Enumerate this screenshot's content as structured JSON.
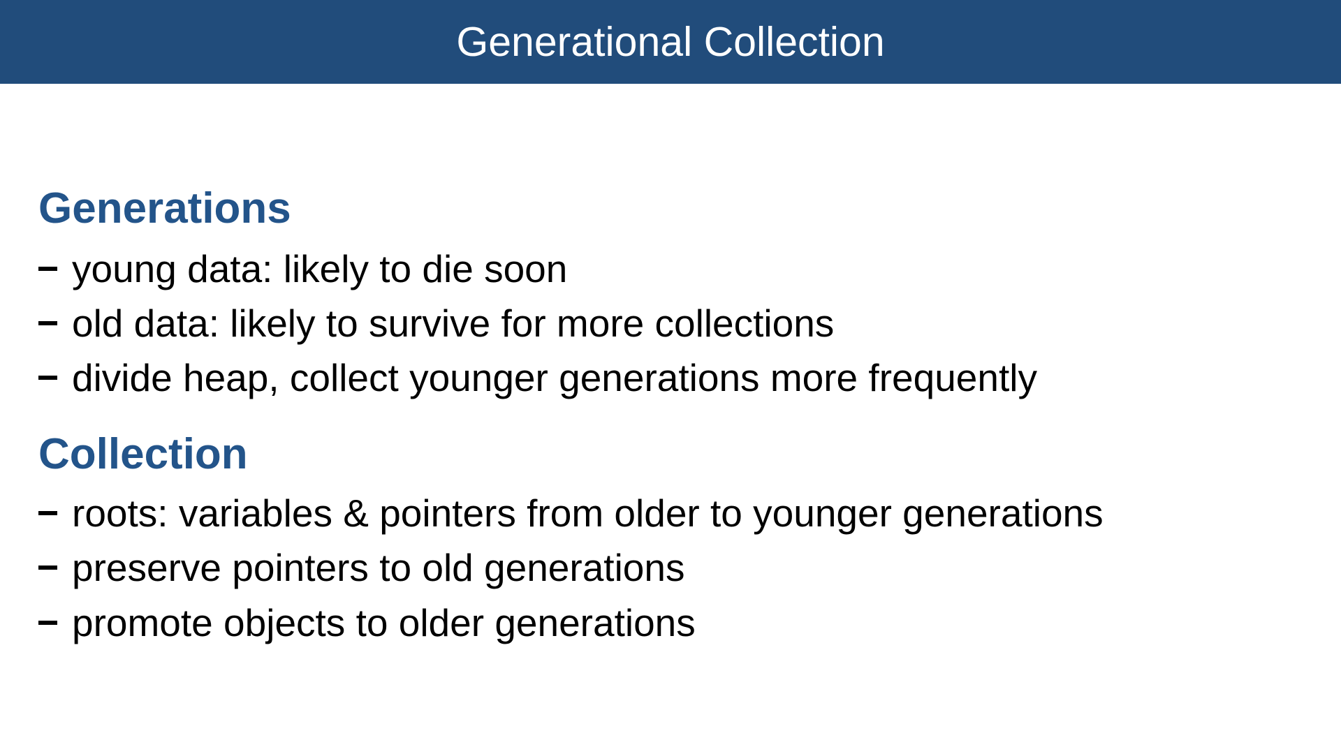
{
  "slide": {
    "title": "Generational Collection",
    "sections": [
      {
        "heading": "Generations",
        "bullets": [
          "young data: likely to die soon",
          "old data: likely to survive for more collections",
          "divide heap, collect younger generations more frequently"
        ]
      },
      {
        "heading": "Collection",
        "bullets": [
          "roots: variables & pointers from older to younger generations",
          "preserve pointers to old generations",
          "promote objects to older generations"
        ]
      }
    ]
  },
  "colors": {
    "title_bar": "#214c7b",
    "heading": "#23548a",
    "body_text": "#000000"
  }
}
